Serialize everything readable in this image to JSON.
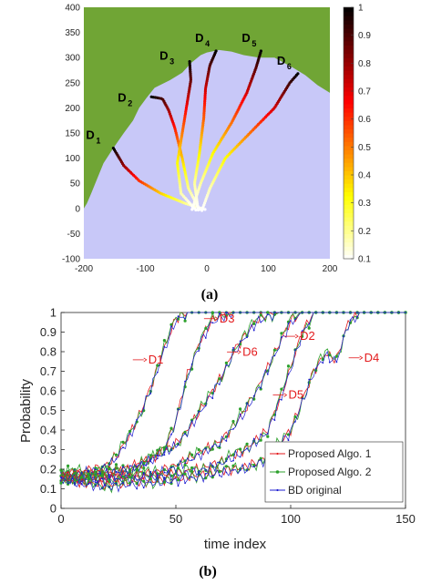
{
  "chart_data": [
    {
      "panel_label": "(a)",
      "type": "scatter",
      "xlim": [
        -200,
        200
      ],
      "ylim": [
        -100,
        400
      ],
      "xticks": [
        "-200",
        "-100",
        "0",
        "100",
        "200"
      ],
      "yticks": [
        "-100",
        "-50",
        "0",
        "50",
        "100",
        "150",
        "200",
        "250",
        "300",
        "350",
        "400"
      ],
      "colorbar": {
        "ticks": [
          "0.1",
          "0.2",
          "0.3",
          "0.4",
          "0.5",
          "0.6",
          "0.7",
          "0.8",
          "0.9",
          "1"
        ],
        "range": [
          0.1,
          1
        ],
        "colormap": "hot-reversed"
      },
      "colors": {
        "terrain": "#70a535",
        "open_area": "#c8c8f8"
      },
      "terrain_boundary": [
        [
          -200,
          0
        ],
        [
          -195,
          10
        ],
        [
          -188,
          30
        ],
        [
          -178,
          60
        ],
        [
          -168,
          90
        ],
        [
          -152,
          120
        ],
        [
          -135,
          150
        ],
        [
          -120,
          175
        ],
        [
          -110,
          200
        ],
        [
          -98,
          220
        ],
        [
          -85,
          240
        ],
        [
          -60,
          255
        ],
        [
          -40,
          270
        ],
        [
          -25,
          290
        ],
        [
          -10,
          305
        ],
        [
          0,
          310
        ],
        [
          20,
          315
        ],
        [
          40,
          312
        ],
        [
          60,
          305
        ],
        [
          85,
          300
        ],
        [
          110,
          300
        ],
        [
          125,
          290
        ],
        [
          140,
          280
        ],
        [
          160,
          265
        ],
        [
          180,
          245
        ],
        [
          200,
          230
        ]
      ],
      "destinations": [
        {
          "label": "D",
          "sub": "1",
          "x": -152,
          "y": 120
        },
        {
          "label": "D",
          "sub": "2",
          "x": -90,
          "y": 222
        },
        {
          "label": "D",
          "sub": "3",
          "x": -28,
          "y": 292
        },
        {
          "label": "D",
          "sub": "4",
          "x": 15,
          "y": 313
        },
        {
          "label": "D",
          "sub": "5",
          "x": 88,
          "y": 313
        },
        {
          "label": "D",
          "sub": "6",
          "x": 148,
          "y": 268
        }
      ],
      "trajectories": [
        {
          "target": "D1",
          "points": [
            [
              -3,
              -2
            ],
            [
              -35,
              10
            ],
            [
              -75,
              30
            ],
            [
              -110,
              55
            ],
            [
              -135,
              85
            ],
            [
              -152,
              120
            ]
          ],
          "prob_end": 1.0
        },
        {
          "target": "D2",
          "points": [
            [
              -12,
              -2
            ],
            [
              -30,
              40
            ],
            [
              -40,
              100
            ],
            [
              -52,
              160
            ],
            [
              -62,
              195
            ],
            [
              -72,
              218
            ],
            [
              -90,
              222
            ]
          ],
          "prob_end": 1.0
        },
        {
          "target": "D3",
          "points": [
            [
              -18,
              -3
            ],
            [
              -42,
              30
            ],
            [
              -48,
              90
            ],
            [
              -40,
              150
            ],
            [
              -32,
              210
            ],
            [
              -26,
              255
            ],
            [
              -28,
              292
            ]
          ],
          "prob_end": 1.0
        },
        {
          "target": "D4",
          "points": [
            [
              -14,
              -3
            ],
            [
              -20,
              50
            ],
            [
              -12,
              110
            ],
            [
              -5,
              180
            ],
            [
              -2,
              240
            ],
            [
              5,
              285
            ],
            [
              15,
              313
            ]
          ],
          "prob_end": 1.0
        },
        {
          "target": "D5",
          "points": [
            [
              -24,
              -2
            ],
            [
              -10,
              50
            ],
            [
              10,
              110
            ],
            [
              40,
              170
            ],
            [
              65,
              230
            ],
            [
              80,
              280
            ],
            [
              88,
              313
            ]
          ],
          "prob_end": 1.0
        },
        {
          "target": "D6",
          "points": [
            [
              -8,
              -4
            ],
            [
              5,
              40
            ],
            [
              30,
              100
            ],
            [
              70,
              150
            ],
            [
              110,
              200
            ],
            [
              135,
              250
            ],
            [
              148,
              268
            ]
          ],
          "prob_end": 1.0
        }
      ]
    },
    {
      "panel_label": "(b)",
      "type": "line",
      "xlabel": "time index",
      "ylabel": "Probability",
      "xlim": [
        0,
        150
      ],
      "ylim": [
        0,
        1
      ],
      "xticks": [
        "0",
        "50",
        "100",
        "150"
      ],
      "yticks": [
        "0",
        "0.1",
        "0.2",
        "0.3",
        "0.4",
        "0.5",
        "0.6",
        "0.7",
        "0.8",
        "0.9",
        "1"
      ],
      "grid": false,
      "legend_position": "bottom-right",
      "legend": [
        {
          "name": "Proposed Algo. 1",
          "color": "#e31a1c",
          "marker": "+"
        },
        {
          "name": "Proposed Algo. 2",
          "color": "#2ca02c",
          "marker": "*"
        },
        {
          "name": "BD original",
          "color": "#1f1fd0",
          "marker": "."
        }
      ],
      "annotations": [
        {
          "text": "D1",
          "x": 38,
          "y": 0.74
        },
        {
          "text": "D3",
          "x": 69,
          "y": 0.95
        },
        {
          "text": "D6",
          "x": 79,
          "y": 0.78
        },
        {
          "text": "D2",
          "x": 104,
          "y": 0.86
        },
        {
          "text": "D5",
          "x": 99,
          "y": 0.56
        },
        {
          "text": "D4",
          "x": 132,
          "y": 0.75
        }
      ],
      "curves": [
        {
          "target": "D1",
          "x": [
            0,
            10,
            20,
            25,
            30,
            35,
            40,
            45,
            50,
            55,
            60,
            150
          ],
          "y": [
            0.17,
            0.19,
            0.22,
            0.28,
            0.38,
            0.5,
            0.65,
            0.82,
            0.97,
            1.0,
            1.0,
            1.0
          ]
        },
        {
          "target": "D3",
          "x": [
            0,
            10,
            20,
            30,
            40,
            45,
            50,
            55,
            60,
            65,
            70,
            75,
            150
          ],
          "y": [
            0.17,
            0.18,
            0.17,
            0.2,
            0.26,
            0.3,
            0.45,
            0.68,
            0.84,
            0.95,
            0.99,
            1.0,
            1.0
          ]
        },
        {
          "target": "D6",
          "x": [
            0,
            10,
            20,
            30,
            40,
            50,
            55,
            60,
            65,
            70,
            75,
            80,
            85,
            90,
            95,
            150
          ],
          "y": [
            0.17,
            0.17,
            0.19,
            0.21,
            0.26,
            0.33,
            0.4,
            0.49,
            0.58,
            0.68,
            0.8,
            0.88,
            0.96,
            0.99,
            1.0,
            1.0
          ]
        },
        {
          "target": "D2",
          "x": [
            0,
            10,
            20,
            30,
            40,
            50,
            60,
            70,
            75,
            80,
            85,
            90,
            95,
            100,
            105,
            150
          ],
          "y": [
            0.16,
            0.15,
            0.16,
            0.17,
            0.18,
            0.22,
            0.28,
            0.35,
            0.42,
            0.5,
            0.6,
            0.72,
            0.84,
            0.96,
            1.0,
            1.0
          ]
        },
        {
          "target": "D5",
          "x": [
            0,
            10,
            20,
            30,
            40,
            50,
            60,
            70,
            80,
            90,
            95,
            100,
            105,
            110,
            150
          ],
          "y": [
            0.16,
            0.15,
            0.15,
            0.16,
            0.17,
            0.18,
            0.2,
            0.24,
            0.3,
            0.4,
            0.55,
            0.72,
            0.9,
            1.0,
            1.0
          ]
        },
        {
          "target": "D4",
          "x": [
            0,
            10,
            20,
            30,
            40,
            50,
            60,
            70,
            80,
            90,
            100,
            105,
            110,
            115,
            120,
            125,
            130,
            150
          ],
          "y": [
            0.16,
            0.13,
            0.12,
            0.13,
            0.14,
            0.15,
            0.17,
            0.19,
            0.21,
            0.26,
            0.4,
            0.55,
            0.7,
            0.79,
            0.76,
            0.95,
            1.0,
            1.0
          ]
        }
      ]
    }
  ]
}
